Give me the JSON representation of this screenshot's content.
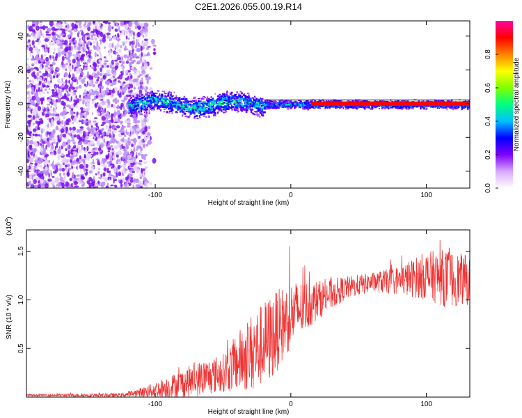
{
  "title": "C2E1.2026.055.00.19.R14",
  "chart_data": [
    {
      "type": "heatmap",
      "xlabel": "Height of straight line (km)",
      "ylabel": "Frequency (Hz)",
      "xlim": [
        -195,
        132
      ],
      "ylim": [
        -50,
        49
      ],
      "xticks": [
        -100,
        0,
        100
      ],
      "xtick_labels": [
        "-100",
        "0",
        "100"
      ],
      "yticks": [
        -40,
        -20,
        0,
        20,
        40
      ],
      "ytick_labels": [
        "-40",
        "-20",
        "0",
        "20",
        "40"
      ],
      "colorbar": {
        "label": "Normalized spectral amplitude",
        "range": [
          0,
          1
        ],
        "ticks": [
          0.0,
          0.2,
          0.4,
          0.6,
          0.8
        ],
        "tick_labels": [
          "0.0",
          "0.2",
          "0.4",
          "0.6",
          "0.8"
        ],
        "colors": [
          "#ffffff",
          "#d8a8ff",
          "#8000ff",
          "#0000ff",
          "#00c0ff",
          "#00ff80",
          "#80ff00",
          "#ffff00",
          "#ff8000",
          "#ff0000",
          "#ff00a0"
        ]
      },
      "regions": [
        {
          "name": "noise",
          "x_range": [
            -195,
            -105
          ],
          "freq_range": [
            -50,
            49
          ],
          "amplitude": 0.1
        },
        {
          "name": "onset",
          "x_range": [
            -120,
            -20
          ],
          "freq_center": 0,
          "freq_halfwidth": 7,
          "amplitude": 0.35
        },
        {
          "name": "tone",
          "x_range": [
            -20,
            132
          ],
          "freq_center": 0,
          "freq_halfwidth": 3,
          "amplitude": 0.9
        }
      ]
    },
    {
      "type": "line",
      "xlabel": "Height of straight line (km)",
      "ylabel": "SNR (10 * v/v)",
      "ylabel_scale": "(x10",
      "ylabel_scale_exp": "4",
      "ylabel_scale_close": ")",
      "xlim": [
        -195,
        132
      ],
      "ylim": [
        0,
        1.72
      ],
      "xticks": [
        -100,
        0,
        100
      ],
      "xtick_labels": [
        "-100",
        "0",
        "100"
      ],
      "yticks": [
        0.5,
        1.0,
        1.5
      ],
      "ytick_labels": [
        "0.5",
        "1.0",
        "1.5"
      ],
      "color": "#ee3333",
      "envelope": [
        {
          "x": -195,
          "mean": 0.02,
          "spread": 0.01
        },
        {
          "x": -125,
          "mean": 0.02,
          "spread": 0.02
        },
        {
          "x": -110,
          "mean": 0.05,
          "spread": 0.05
        },
        {
          "x": -90,
          "mean": 0.1,
          "spread": 0.12
        },
        {
          "x": -70,
          "mean": 0.18,
          "spread": 0.18
        },
        {
          "x": -50,
          "mean": 0.25,
          "spread": 0.2
        },
        {
          "x": -30,
          "mean": 0.45,
          "spread": 0.4
        },
        {
          "x": -15,
          "mean": 0.6,
          "spread": 0.45
        },
        {
          "x": 0,
          "mean": 0.85,
          "spread": 0.35
        },
        {
          "x": 20,
          "mean": 1.0,
          "spread": 0.2
        },
        {
          "x": 40,
          "mean": 1.12,
          "spread": 0.12
        },
        {
          "x": 60,
          "mean": 1.18,
          "spread": 0.1
        },
        {
          "x": 80,
          "mean": 1.2,
          "spread": 0.15
        },
        {
          "x": 100,
          "mean": 1.25,
          "spread": 0.25
        },
        {
          "x": 115,
          "mean": 1.22,
          "spread": 0.3
        },
        {
          "x": 132,
          "mean": 1.2,
          "spread": 0.25
        }
      ]
    }
  ]
}
